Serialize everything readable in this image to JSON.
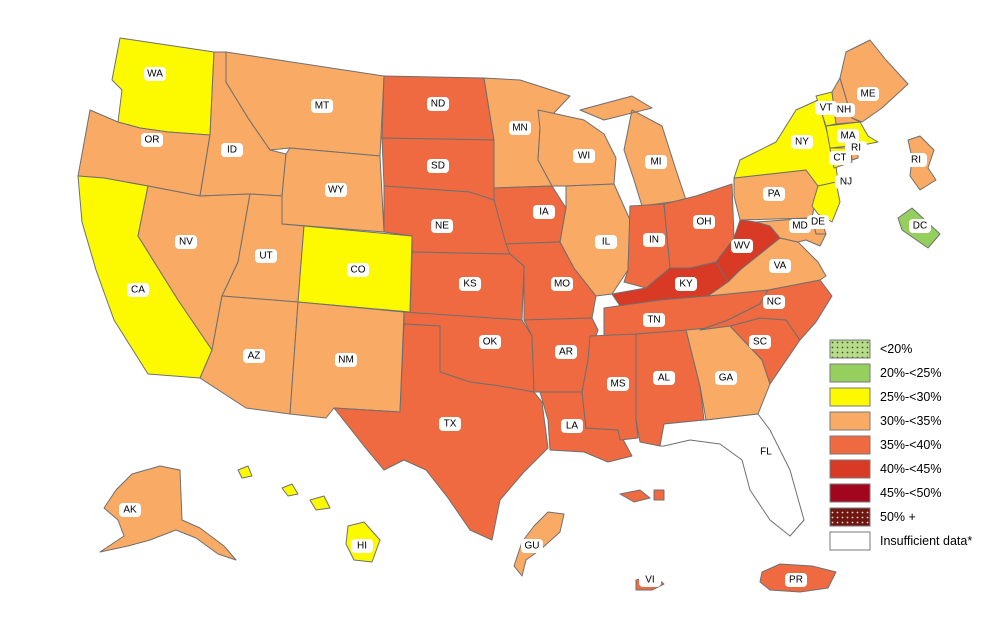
{
  "colors": {
    "lt20": "#b7db8a",
    "c20_25": "#95d05f",
    "c25_30": "#fdfa00",
    "c30_35": "#f9aa64",
    "c35_40": "#ef6a40",
    "c40_45": "#d93a25",
    "c45_50": "#a2061f",
    "c50p": "#6e1612",
    "insufficient": "#ffffff",
    "border": "#6f6f6f"
  },
  "legend": [
    {
      "label": "<20%",
      "color": "#b7db8a",
      "pattern": "dots-dark"
    },
    {
      "label": "20%-<25%",
      "color": "#95d05f",
      "pattern": "none"
    },
    {
      "label": "25%-<30%",
      "color": "#fdfa00",
      "pattern": "none"
    },
    {
      "label": "30%-<35%",
      "color": "#f9aa64",
      "pattern": "none"
    },
    {
      "label": "35%-<40%",
      "color": "#ef6a40",
      "pattern": "none"
    },
    {
      "label": "40%-<45%",
      "color": "#d93a25",
      "pattern": "none"
    },
    {
      "label": "45%-<50%",
      "color": "#a2061f",
      "pattern": "none"
    },
    {
      "label": "50% +",
      "color": "#6e1612",
      "pattern": "dots-light"
    },
    {
      "label": "Insufficient data*",
      "color": "#ffffff",
      "pattern": "none"
    }
  ],
  "states": {
    "WA": {
      "label": "WA",
      "category": "25%-<30%"
    },
    "OR": {
      "label": "OR",
      "category": "30%-<35%"
    },
    "CA": {
      "label": "CA",
      "category": "25%-<30%"
    },
    "ID": {
      "label": "ID",
      "category": "30%-<35%"
    },
    "NV": {
      "label": "NV",
      "category": "30%-<35%"
    },
    "MT": {
      "label": "MT",
      "category": "30%-<35%"
    },
    "WY": {
      "label": "WY",
      "category": "30%-<35%"
    },
    "UT": {
      "label": "UT",
      "category": "30%-<35%"
    },
    "AZ": {
      "label": "AZ",
      "category": "30%-<35%"
    },
    "CO": {
      "label": "CO",
      "category": "25%-<30%"
    },
    "NM": {
      "label": "NM",
      "category": "30%-<35%"
    },
    "ND": {
      "label": "ND",
      "category": "35%-<40%"
    },
    "SD": {
      "label": "SD",
      "category": "35%-<40%"
    },
    "NE": {
      "label": "NE",
      "category": "35%-<40%"
    },
    "KS": {
      "label": "KS",
      "category": "35%-<40%"
    },
    "OK": {
      "label": "OK",
      "category": "35%-<40%"
    },
    "TX": {
      "label": "TX",
      "category": "35%-<40%"
    },
    "MN": {
      "label": "MN",
      "category": "30%-<35%"
    },
    "IA": {
      "label": "IA",
      "category": "35%-<40%"
    },
    "MO": {
      "label": "MO",
      "category": "35%-<40%"
    },
    "AR": {
      "label": "AR",
      "category": "35%-<40%"
    },
    "LA": {
      "label": "LA",
      "category": "35%-<40%"
    },
    "WI": {
      "label": "WI",
      "category": "30%-<35%"
    },
    "IL": {
      "label": "IL",
      "category": "30%-<35%"
    },
    "MI": {
      "label": "MI",
      "category": "30%-<35%"
    },
    "IN": {
      "label": "IN",
      "category": "35%-<40%"
    },
    "OH": {
      "label": "OH",
      "category": "35%-<40%"
    },
    "KY": {
      "label": "KY",
      "category": "40%-<45%"
    },
    "TN": {
      "label": "TN",
      "category": "35%-<40%"
    },
    "MS": {
      "label": "MS",
      "category": "35%-<40%"
    },
    "AL": {
      "label": "AL",
      "category": "35%-<40%"
    },
    "GA": {
      "label": "GA",
      "category": "30%-<35%"
    },
    "FL": {
      "label": "FL",
      "category": "Insufficient data*"
    },
    "SC": {
      "label": "SC",
      "category": "35%-<40%"
    },
    "NC": {
      "label": "NC",
      "category": "35%-<40%"
    },
    "VA": {
      "label": "VA",
      "category": "30%-<35%"
    },
    "WV": {
      "label": "WV",
      "category": "40%-<45%"
    },
    "PA": {
      "label": "PA",
      "category": "30%-<35%"
    },
    "NY": {
      "label": "NY",
      "category": "25%-<30%"
    },
    "NJ": {
      "label": "NJ",
      "category": "25%-<30%"
    },
    "DE": {
      "label": "DE",
      "category": "30%-<35%"
    },
    "MD": {
      "label": "MD",
      "category": "30%-<35%"
    },
    "DC": {
      "label": "DC",
      "category": "20%-<25%"
    },
    "CT": {
      "label": "CT",
      "category": "25%-<30%"
    },
    "RI": {
      "label": "RI",
      "category": "30%-<35%"
    },
    "MA": {
      "label": "MA",
      "category": "25%-<30%"
    },
    "VT": {
      "label": "VT",
      "category": "25%-<30%"
    },
    "NH": {
      "label": "NH",
      "category": "30%-<35%"
    },
    "ME": {
      "label": "ME",
      "category": "30%-<35%"
    },
    "AK": {
      "label": "AK",
      "category": "30%-<35%"
    },
    "HI": {
      "label": "HI",
      "category": "25%-<30%"
    },
    "GU": {
      "label": "GU",
      "category": "30%-<35%"
    },
    "PR": {
      "label": "PR",
      "category": "35%-<40%"
    },
    "VI": {
      "label": "VI",
      "category": "35%-<40%"
    }
  }
}
